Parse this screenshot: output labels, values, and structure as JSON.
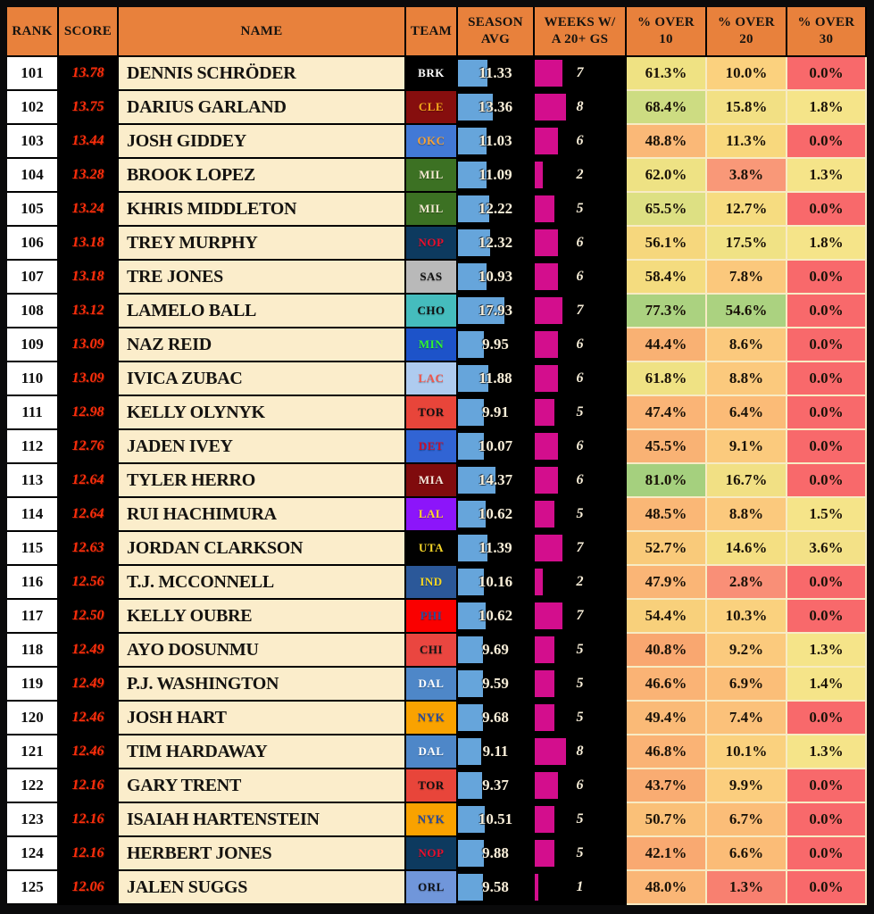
{
  "chart_data": {
    "type": "table",
    "columns": [
      {
        "id": "rank",
        "label": "RANK"
      },
      {
        "id": "score",
        "label": "SCORE"
      },
      {
        "id": "name",
        "label": "NAME"
      },
      {
        "id": "team",
        "label": "TEAM"
      },
      {
        "id": "season_avg",
        "label": "SEASON\nAVG"
      },
      {
        "id": "weeks_20gs",
        "label": "WEEKS W/\nA 20+ GS"
      },
      {
        "id": "pct_over_10",
        "label": "% OVER\n10"
      },
      {
        "id": "pct_over_20",
        "label": "% OVER\n20"
      },
      {
        "id": "pct_over_30",
        "label": "% OVER\n30"
      }
    ],
    "rows": [
      {
        "rank": "101",
        "score": "13.78",
        "name": "DENNIS SCHRÖDER",
        "team": "BRK",
        "season_avg": 11.33,
        "weeks": 7,
        "pct10": "61.3%",
        "pct10_bg": "#EFE283",
        "pct20": "10.0%",
        "pct20_bg": "#FBD17E",
        "pct30": "0.0%",
        "pct30_bg": "#F8696B"
      },
      {
        "rank": "102",
        "score": "13.75",
        "name": "DARIUS GARLAND",
        "team": "CLE",
        "season_avg": 13.36,
        "weeks": 8,
        "pct10": "68.4%",
        "pct10_bg": "#CDDC82",
        "pct20": "15.8%",
        "pct20_bg": "#F2E084",
        "pct30": "1.8%",
        "pct30_bg": "#F5E489"
      },
      {
        "rank": "103",
        "score": "13.44",
        "name": "JOSH GIDDEY",
        "team": "OKC",
        "season_avg": 11.03,
        "weeks": 6,
        "pct10": "48.8%",
        "pct10_bg": "#FAB877",
        "pct20": "11.3%",
        "pct20_bg": "#F8D87D",
        "pct30": "0.0%",
        "pct30_bg": "#F8696B"
      },
      {
        "rank": "104",
        "score": "13.28",
        "name": "BROOK LOPEZ",
        "team": "MIL",
        "season_avg": 11.09,
        "weeks": 2,
        "pct10": "62.0%",
        "pct10_bg": "#EEE284",
        "pct20": "3.8%",
        "pct20_bg": "#F99878",
        "pct30": "1.3%",
        "pct30_bg": "#F5E489"
      },
      {
        "rank": "105",
        "score": "13.24",
        "name": "KHRIS MIDDLETON",
        "team": "MIL",
        "season_avg": 12.22,
        "weeks": 5,
        "pct10": "65.5%",
        "pct10_bg": "#DDE083",
        "pct20": "12.7%",
        "pct20_bg": "#F6DC80",
        "pct30": "0.0%",
        "pct30_bg": "#F8696B"
      },
      {
        "rank": "106",
        "score": "13.18",
        "name": "TREY MURPHY",
        "team": "NOP",
        "season_avg": 12.32,
        "weeks": 6,
        "pct10": "56.1%",
        "pct10_bg": "#F6D77D",
        "pct20": "17.5%",
        "pct20_bg": "#F0E285",
        "pct30": "1.8%",
        "pct30_bg": "#F5E489"
      },
      {
        "rank": "107",
        "score": "13.18",
        "name": "TRE JONES",
        "team": "SAS",
        "season_avg": 10.93,
        "weeks": 6,
        "pct10": "58.4%",
        "pct10_bg": "#F4DC7F",
        "pct20": "7.8%",
        "pct20_bg": "#FBC87C",
        "pct30": "0.0%",
        "pct30_bg": "#F8696B"
      },
      {
        "rank": "108",
        "score": "13.12",
        "name": "LAMELO BALL",
        "team": "CHO",
        "season_avg": 17.93,
        "weeks": 7,
        "pct10": "77.3%",
        "pct10_bg": "#ABD280",
        "pct20": "54.6%",
        "pct20_bg": "#ABD280",
        "pct30": "0.0%",
        "pct30_bg": "#F8696B"
      },
      {
        "rank": "109",
        "score": "13.09",
        "name": "NAZ REID",
        "team": "MIN",
        "season_avg": 9.95,
        "weeks": 6,
        "pct10": "44.4%",
        "pct10_bg": "#F9B173",
        "pct20": "8.6%",
        "pct20_bg": "#FBC97D",
        "pct30": "0.0%",
        "pct30_bg": "#F8696B"
      },
      {
        "rank": "110",
        "score": "13.09",
        "name": "IVICA ZUBAC",
        "team": "LAC",
        "season_avg": 11.88,
        "weeks": 6,
        "pct10": "61.8%",
        "pct10_bg": "#EFE284",
        "pct20": "8.8%",
        "pct20_bg": "#FBC97D",
        "pct30": "0.0%",
        "pct30_bg": "#F8696B"
      },
      {
        "rank": "111",
        "score": "12.98",
        "name": "KELLY OLYNYK",
        "team": "TOR",
        "season_avg": 9.91,
        "weeks": 5,
        "pct10": "47.4%",
        "pct10_bg": "#FAB476",
        "pct20": "6.4%",
        "pct20_bg": "#FBBB77",
        "pct30": "0.0%",
        "pct30_bg": "#F8696B"
      },
      {
        "rank": "112",
        "score": "12.76",
        "name": "JADEN IVEY",
        "team": "DET",
        "season_avg": 10.07,
        "weeks": 6,
        "pct10": "45.5%",
        "pct10_bg": "#F9B274",
        "pct20": "9.1%",
        "pct20_bg": "#FBCA7D",
        "pct30": "0.0%",
        "pct30_bg": "#F8696B"
      },
      {
        "rank": "113",
        "score": "12.64",
        "name": "TYLER HERRO",
        "team": "MIA",
        "season_avg": 14.37,
        "weeks": 6,
        "pct10": "81.0%",
        "pct10_bg": "#A5D07E",
        "pct20": "16.7%",
        "pct20_bg": "#F1E084",
        "pct30": "0.0%",
        "pct30_bg": "#F8696B"
      },
      {
        "rank": "114",
        "score": "12.64",
        "name": "RUI HACHIMURA",
        "team": "LAL",
        "season_avg": 10.62,
        "weeks": 5,
        "pct10": "48.5%",
        "pct10_bg": "#FAB776",
        "pct20": "8.8%",
        "pct20_bg": "#FBC97D",
        "pct30": "1.5%",
        "pct30_bg": "#F5E489"
      },
      {
        "rank": "115",
        "score": "12.63",
        "name": "JORDAN CLARKSON",
        "team": "UTA",
        "season_avg": 11.39,
        "weeks": 7,
        "pct10": "52.7%",
        "pct10_bg": "#F9CA7A",
        "pct20": "14.6%",
        "pct20_bg": "#F4DF82",
        "pct30": "3.6%",
        "pct30_bg": "#F3E187"
      },
      {
        "rank": "116",
        "score": "12.56",
        "name": "T.J. MCCONNELL",
        "team": "IND",
        "season_avg": 10.16,
        "weeks": 2,
        "pct10": "47.9%",
        "pct10_bg": "#FAB576",
        "pct20": "2.8%",
        "pct20_bg": "#F98F77",
        "pct30": "0.0%",
        "pct30_bg": "#F8696B"
      },
      {
        "rank": "117",
        "score": "12.50",
        "name": "KELLY OUBRE",
        "team": "PHI",
        "season_avg": 10.62,
        "weeks": 7,
        "pct10": "54.4%",
        "pct10_bg": "#F8D07B",
        "pct20": "10.3%",
        "pct20_bg": "#FAD17E",
        "pct30": "0.0%",
        "pct30_bg": "#F8696B"
      },
      {
        "rank": "118",
        "score": "12.49",
        "name": "AYO DOSUNMU",
        "team": "CHI",
        "season_avg": 9.69,
        "weeks": 5,
        "pct10": "40.8%",
        "pct10_bg": "#F9A770",
        "pct20": "9.2%",
        "pct20_bg": "#FBCA7D",
        "pct30": "1.3%",
        "pct30_bg": "#F5E489"
      },
      {
        "rank": "119",
        "score": "12.49",
        "name": "P.J. WASHINGTON",
        "team": "DAL",
        "season_avg": 9.59,
        "weeks": 5,
        "pct10": "46.6%",
        "pct10_bg": "#FAB375",
        "pct20": "6.9%",
        "pct20_bg": "#FBBE78",
        "pct30": "1.4%",
        "pct30_bg": "#F5E489"
      },
      {
        "rank": "120",
        "score": "12.46",
        "name": "JOSH HART",
        "team": "NYK",
        "season_avg": 9.68,
        "weeks": 5,
        "pct10": "49.4%",
        "pct10_bg": "#FABA77",
        "pct20": "7.4%",
        "pct20_bg": "#FBC17A",
        "pct30": "0.0%",
        "pct30_bg": "#F8696B"
      },
      {
        "rank": "121",
        "score": "12.46",
        "name": "TIM HARDAWAY",
        "team": "DAL",
        "season_avg": 9.11,
        "weeks": 8,
        "pct10": "46.8%",
        "pct10_bg": "#FAB375",
        "pct20": "10.1%",
        "pct20_bg": "#FAD17E",
        "pct30": "1.3%",
        "pct30_bg": "#F5E489"
      },
      {
        "rank": "122",
        "score": "12.16",
        "name": "GARY TRENT",
        "team": "TOR",
        "season_avg": 9.37,
        "weeks": 6,
        "pct10": "43.7%",
        "pct10_bg": "#F9AC72",
        "pct20": "9.9%",
        "pct20_bg": "#FBCE7E",
        "pct30": "0.0%",
        "pct30_bg": "#F8696B"
      },
      {
        "rank": "123",
        "score": "12.16",
        "name": "ISAIAH HARTENSTEIN",
        "team": "NYK",
        "season_avg": 10.51,
        "weeks": 5,
        "pct10": "50.7%",
        "pct10_bg": "#FAC078",
        "pct20": "6.7%",
        "pct20_bg": "#FBBD78",
        "pct30": "0.0%",
        "pct30_bg": "#F8696B"
      },
      {
        "rank": "124",
        "score": "12.16",
        "name": "HERBERT JONES",
        "team": "NOP",
        "season_avg": 9.88,
        "weeks": 5,
        "pct10": "42.1%",
        "pct10_bg": "#F9A971",
        "pct20": "6.6%",
        "pct20_bg": "#FBBC77",
        "pct30": "0.0%",
        "pct30_bg": "#F8696B"
      },
      {
        "rank": "125",
        "score": "12.06",
        "name": "JALEN SUGGS",
        "team": "ORL",
        "season_avg": 9.58,
        "weeks": 1,
        "pct10": "48.0%",
        "pct10_bg": "#FAB676",
        "pct20": "1.3%",
        "pct20_bg": "#F88070",
        "pct30": "0.0%",
        "pct30_bg": "#F8696B"
      }
    ],
    "layout_hints": {
      "season_avg_bar_max": 29,
      "weeks_bar_max": 23
    }
  },
  "team_colors": {
    "BRK": {
      "bg": "#000000",
      "fg": "#FFFFFF"
    },
    "CLE": {
      "bg": "#860E0E",
      "fg": "#F5A81C"
    },
    "OKC": {
      "bg": "#4279D6",
      "fg": "#F4A339"
    },
    "MIL": {
      "bg": "#3C7123",
      "fg": "#F2E8D0"
    },
    "NOP": {
      "bg": "#0D3A5F",
      "fg": "#E8102E"
    },
    "SAS": {
      "bg": "#B9B9B9",
      "fg": "#101010"
    },
    "CHO": {
      "bg": "#45BCBD",
      "fg": "#101010"
    },
    "MIN": {
      "bg": "#1D53C9",
      "fg": "#30F52F"
    },
    "LAC": {
      "bg": "#AECBEF",
      "fg": "#F2574D"
    },
    "TOR": {
      "bg": "#E8453A",
      "fg": "#101010"
    },
    "DET": {
      "bg": "#3164D4",
      "fg": "#C8102E"
    },
    "MIA": {
      "bg": "#800B0D",
      "fg": "#F7E9DC"
    },
    "LAL": {
      "bg": "#8C15FA",
      "fg": "#FBD829"
    },
    "UTA": {
      "bg": "#010101",
      "fg": "#F8D829"
    },
    "IND": {
      "bg": "#2B5899",
      "fg": "#F5D723"
    },
    "PHI": {
      "bg": "#FA0000",
      "fg": "#2B4C9B"
    },
    "CHI": {
      "bg": "#EA4640",
      "fg": "#161616"
    },
    "DAL": {
      "bg": "#4E87C8",
      "fg": "#FFFFFF"
    },
    "NYK": {
      "bg": "#F9A200",
      "fg": "#2B4C9B"
    },
    "ORL": {
      "bg": "#7096DA",
      "fg": "#10131A"
    }
  },
  "style_colors": {
    "header_bg": "#E8813C",
    "frame_border": "#0A0A0B",
    "rank_bg": "#FFFFFF",
    "score_bg": "#000000",
    "score_text": "#FB2E0C",
    "name_bg": "#FBEDCB",
    "season_bar": "#66A5DB",
    "weeks_bar": "#D30E8D",
    "bar_text": "#F9EFD9",
    "pct_grid_line": "#F7EBC4",
    "zero_cell_red": "#F8696B"
  }
}
